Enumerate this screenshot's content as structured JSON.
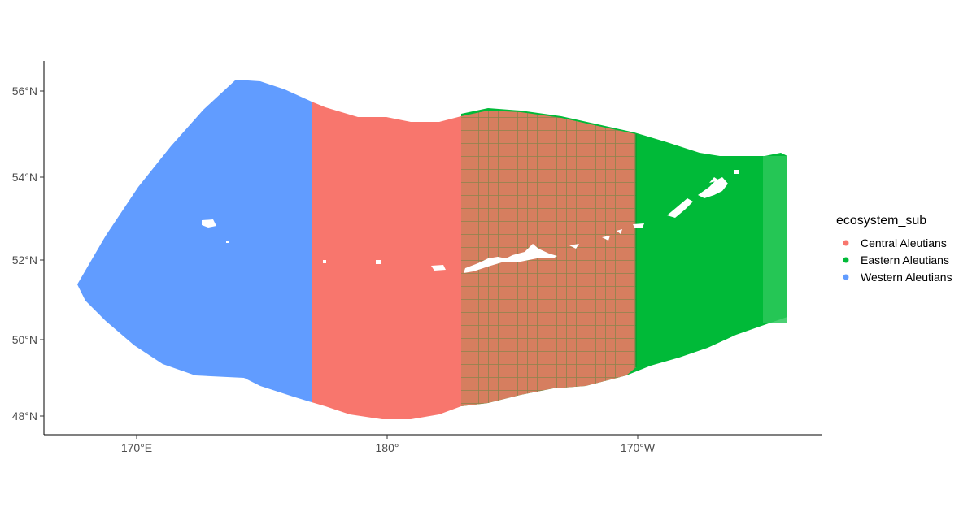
{
  "chart_data": {
    "type": "map",
    "title": "",
    "xlabel": "",
    "ylabel": "",
    "projection": "Albers equal-area (Alaska)",
    "grid": false,
    "legend_position": "right",
    "legend": {
      "title": "ecosystem_sub",
      "entries": [
        {
          "label": "Central Aleutians",
          "color": "#F8766D"
        },
        {
          "label": "Eastern Aleutians",
          "color": "#00BA38"
        },
        {
          "label": "Western Aleutians",
          "color": "#619CFF"
        }
      ]
    },
    "x_ticks": [
      {
        "label": "170°E",
        "lon": 170
      },
      {
        "label": "180°",
        "lon": 180
      },
      {
        "label": "170°W",
        "lon": -170
      }
    ],
    "y_ticks": [
      {
        "label": "56°N",
        "lat": 56
      },
      {
        "label": "54°N",
        "lat": 54
      },
      {
        "label": "52°N",
        "lat": 52
      },
      {
        "label": "50°N",
        "lat": 50
      },
      {
        "label": "48°N",
        "lat": 48
      }
    ],
    "regions": [
      {
        "name": "Western Aleutians",
        "lon_min": 167.5,
        "lon_max": 177,
        "color": "#619CFF"
      },
      {
        "name": "Central Aleutians",
        "lon_min": 177,
        "lon_max": -170,
        "color": "#F8766D"
      },
      {
        "name": "Eastern Aleutians",
        "lon_min": -177,
        "lon_max": -164.5,
        "color": "#00BA38"
      }
    ]
  }
}
